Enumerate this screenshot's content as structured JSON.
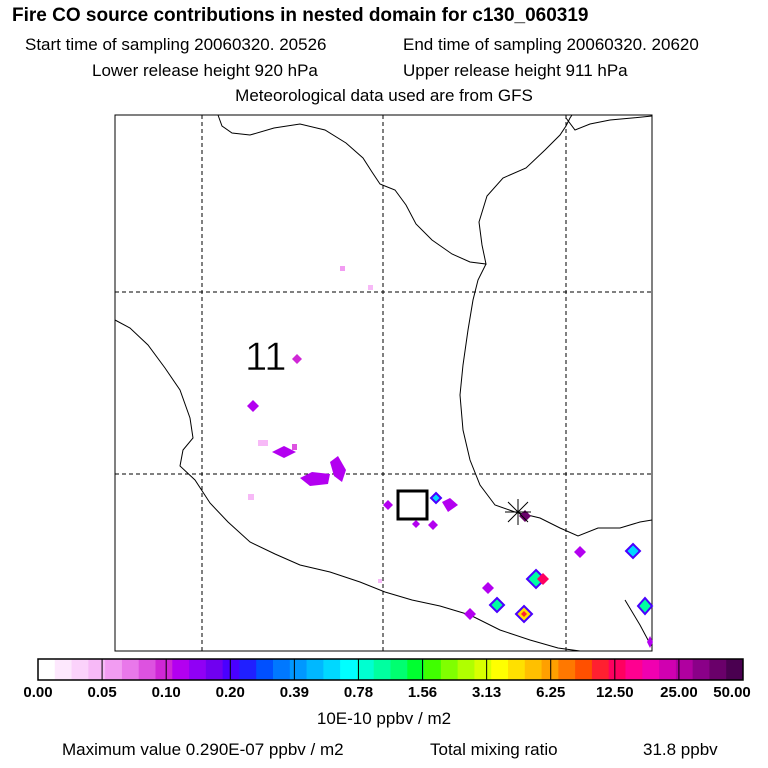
{
  "title": "Fire CO source contributions in nested domain for c130_060319",
  "sampling": {
    "start": "Start time of sampling 20060320. 20526",
    "end": "End time of sampling 20060320. 20620"
  },
  "release": {
    "lower": "Lower release height  920 hPa",
    "upper": "Upper release height  911 hPa"
  },
  "met_note": "Meteorological data used are from GFS",
  "map_label": "11",
  "chart_data": {
    "type": "heatmap",
    "title": "Fire CO source contributions in nested domain for c130_060319",
    "units": "10E-10 ppbv / m2",
    "colorbar_ticks": [
      "0.00",
      "0.05",
      "0.10",
      "0.20",
      "0.39",
      "0.78",
      "1.56",
      "3.13",
      "6.25",
      "12.50",
      "25.00",
      "50.00"
    ],
    "colorbar_colors": [
      "#ffffff",
      "#fde8fd",
      "#fbd2fb",
      "#f7b9f7",
      "#f29cf2",
      "#e978ea",
      "#dd52e0",
      "#cf27d6",
      "#b300f0",
      "#9000f5",
      "#7000f0",
      "#4a00ff",
      "#2020ff",
      "#0050ff",
      "#0078ff",
      "#0098ff",
      "#00b8ff",
      "#00d8ff",
      "#00ffff",
      "#00ffd0",
      "#00ffa0",
      "#00ff70",
      "#00ff30",
      "#40ff00",
      "#80ff00",
      "#b0ff00",
      "#d8ff00",
      "#ffff00",
      "#ffe000",
      "#ffc000",
      "#ffa000",
      "#ff7800",
      "#ff5000",
      "#ff2030",
      "#ff0060",
      "#ff0090",
      "#f000b0",
      "#d000b0",
      "#b000a0",
      "#8a0088",
      "#6a006a",
      "#4a0050"
    ],
    "maximum_value": "Maximum value  0.290E-07 ppbv / m2",
    "total_label": "Total mixing ratio",
    "total_value": "31.8 ppbv"
  }
}
